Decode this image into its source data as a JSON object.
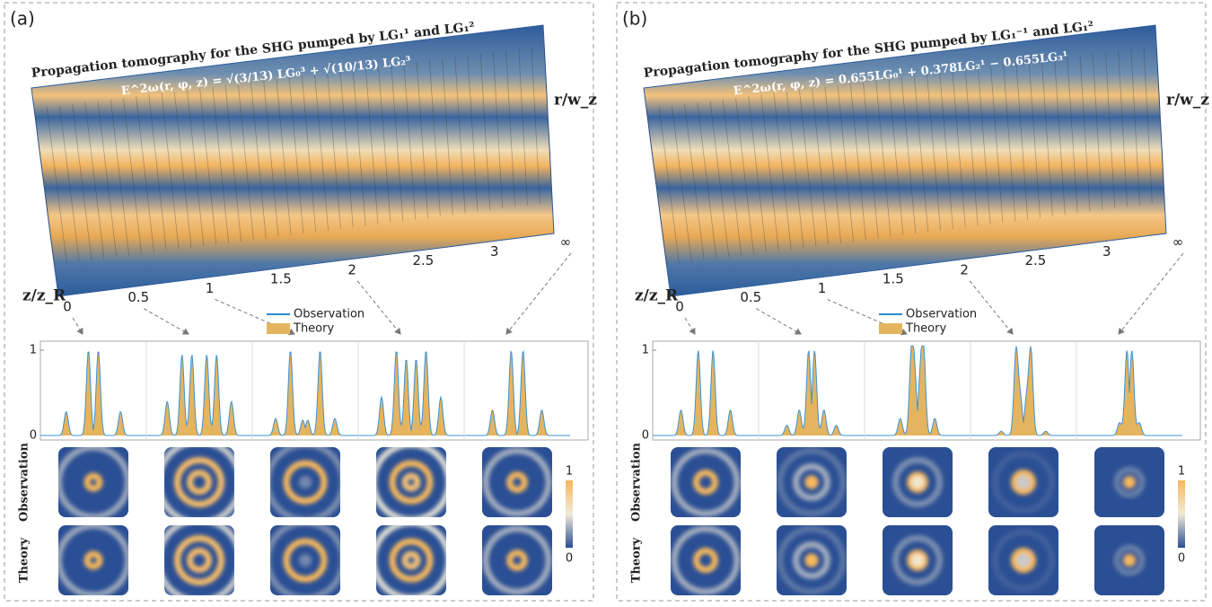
{
  "panels": [
    {
      "label": "(a)",
      "title": "Propagation tomography for the SHG pumped by LG₁¹ and LG₁²",
      "equation": "E^2ω(r, φ, z) = √(3/13) LG₀³ + √(10/13) LG₂³",
      "r_axis_label": "r/w_z",
      "z_axis_label": "z/z_R",
      "z_ticks": [
        "0",
        "0.5",
        "1",
        "1.5",
        "2",
        "2.5",
        "3",
        "∞"
      ],
      "legend": [
        "Observation",
        "Theory"
      ],
      "profile_yticks": [
        0,
        1
      ],
      "row_labels": [
        "Observation",
        "Theory"
      ],
      "colorbar_ticks": [
        1,
        0
      ],
      "profiles": [
        [
          [
            0.1,
            1
          ],
          [
            0.55,
            0.28
          ]
        ],
        [
          [
            0.15,
            0.95
          ],
          [
            0.35,
            0.95
          ],
          [
            0.65,
            0.4
          ]
        ],
        [
          [
            0.05,
            0.18
          ],
          [
            0.3,
            1
          ],
          [
            0.6,
            0.2
          ]
        ],
        [
          [
            0.1,
            0.9
          ],
          [
            0.3,
            1
          ],
          [
            0.6,
            0.45
          ]
        ],
        [
          [
            0.12,
            1
          ],
          [
            0.5,
            0.3
          ]
        ]
      ]
    },
    {
      "label": "(b)",
      "title": "Propagation tomography for the SHG pumped by LG₁⁻¹ and LG₁²",
      "equation": "E^2ω(r, φ, z) = 0.655LG₀¹ + 0.378LG₂¹ − 0.655LG₃¹",
      "r_axis_label": "r/w_z",
      "z_axis_label": "z/z_R",
      "z_ticks": [
        "0",
        "0.5",
        "1",
        "1.5",
        "2",
        "2.5",
        "3",
        "∞"
      ],
      "legend": [
        "Observation",
        "Theory"
      ],
      "profile_yticks": [
        0,
        1
      ],
      "row_labels": [
        "Observation",
        "Theory"
      ],
      "colorbar_ticks": [
        1,
        0
      ],
      "profiles": [
        [
          [
            0.15,
            1
          ],
          [
            0.5,
            0.3
          ]
        ],
        [
          [
            0.06,
            1
          ],
          [
            0.25,
            0.3
          ],
          [
            0.5,
            0.12
          ]
        ],
        [
          [
            0.05,
            0.55
          ],
          [
            0.12,
            1
          ],
          [
            0.35,
            0.2
          ]
        ],
        [
          [
            0.06,
            0.4
          ],
          [
            0.15,
            1
          ],
          [
            0.45,
            0.05
          ]
        ],
        [
          [
            0.05,
            1
          ],
          [
            0.2,
            0.15
          ]
        ]
      ]
    }
  ]
}
